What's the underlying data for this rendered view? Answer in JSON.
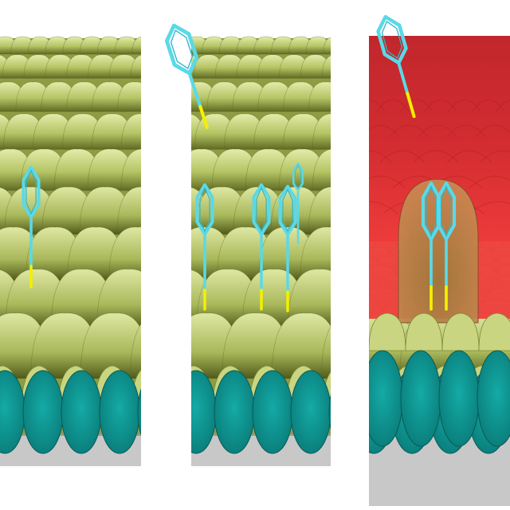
{
  "figure": {
    "panels": [
      {
        "id": "panel-1",
        "adsorbed_molecules": 1,
        "free_molecules": 0,
        "solvent_layer": false
      },
      {
        "id": "panel-2",
        "adsorbed_molecules": 3,
        "free_molecules": 1,
        "small_molecule": true,
        "solvent_layer": false
      },
      {
        "id": "panel-3",
        "adsorbed_molecules": 2,
        "free_molecules": 1,
        "solvent_layer": true,
        "cavity": true
      }
    ],
    "colors": {
      "background": "#ffffff",
      "substrate_gray": "#c8c8c8",
      "sphere_teal": "#0f9d9a",
      "sphere_teal_dark": "#0b6f6d",
      "dome_light": "#d8e39a",
      "dome_mid": "#b7c568",
      "dome_dark": "#6e7a2c",
      "molecule_ring": "#5ad9e8",
      "molecule_anchor": "#f4f000",
      "solvent_dark": "#c8282d",
      "solvent_light": "#ef3a3a",
      "cavity_fill": "#c58a55"
    },
    "icons": [
      "phenyl-ring-icon",
      "anchor-bond-icon"
    ]
  }
}
